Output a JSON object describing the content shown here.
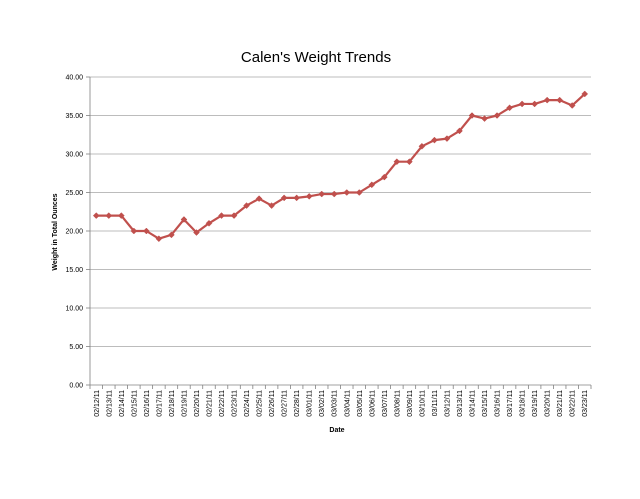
{
  "chart_data": {
    "type": "line",
    "title": "Calen's Weight Trends",
    "xlabel": "Date",
    "ylabel": "Weight in Total Ounces",
    "ylim": [
      0,
      40
    ],
    "yticks": [
      0,
      5,
      10,
      15,
      20,
      25,
      30,
      35,
      40
    ],
    "ytick_labels": [
      "0.00",
      "5.00",
      "10.00",
      "15.00",
      "20.00",
      "25.00",
      "30.00",
      "35.00",
      "40.00"
    ],
    "grid": "horizontal",
    "legend": "none",
    "categories": [
      "02/12/11",
      "02/13/11",
      "02/14/11",
      "02/15/11",
      "02/16/11",
      "02/17/11",
      "02/18/11",
      "02/19/11",
      "02/20/11",
      "02/21/11",
      "02/22/11",
      "02/23/11",
      "02/24/11",
      "02/25/11",
      "02/26/11",
      "02/27/11",
      "02/28/11",
      "03/01/11",
      "03/02/11",
      "03/03/11",
      "03/04/11",
      "03/05/11",
      "03/06/11",
      "03/07/11",
      "03/08/11",
      "03/09/11",
      "03/10/11",
      "03/11/11",
      "03/12/11",
      "03/13/11",
      "03/14/11",
      "03/15/11",
      "03/16/11",
      "03/17/11",
      "03/18/11",
      "03/19/11",
      "03/20/11",
      "03/21/11",
      "03/22/11",
      "03/23/11"
    ],
    "series": [
      {
        "values": [
          22.0,
          22.0,
          22.0,
          20.0,
          20.0,
          19.0,
          19.5,
          21.5,
          19.8,
          21.0,
          22.0,
          22.0,
          23.3,
          24.2,
          23.3,
          24.3,
          24.3,
          24.5,
          24.8,
          24.8,
          25.0,
          25.0,
          26.0,
          27.0,
          29.0,
          29.0,
          31.0,
          31.8,
          32.0,
          33.0,
          35.0,
          34.6,
          35.0,
          36.0,
          36.5,
          36.5,
          37.0,
          37.0,
          36.3,
          37.8
        ],
        "color": "#c0504d",
        "marker_color": "#c0504d"
      }
    ]
  }
}
